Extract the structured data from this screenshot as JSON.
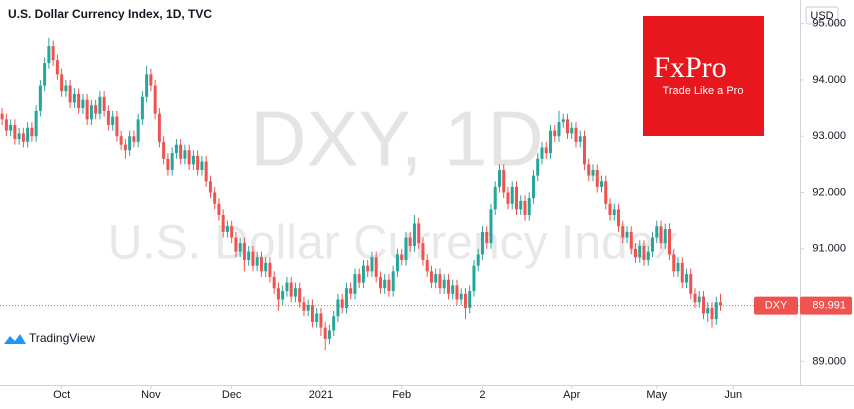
{
  "chart_data": {
    "type": "candlestick",
    "title": "U.S. Dollar Currency Index, 1D, TVC",
    "watermark_symbol": "DXY, 1D",
    "watermark_name": "U.S. Dollar Currency Index",
    "currency": "USD",
    "last_label": "DXY",
    "logo": {
      "brand": "FxPro",
      "tagline": "Trade Like a Pro"
    },
    "source": "TradingView",
    "up_color": "#26a69a",
    "down_color": "#ef5350",
    "xlim": [
      -0.5,
      187.7
    ],
    "xticks": [
      {
        "value": 14,
        "label": "Oct"
      },
      {
        "value": 35,
        "label": "Nov"
      },
      {
        "value": 54,
        "label": "Dec"
      },
      {
        "value": 75,
        "label": "2021"
      },
      {
        "value": 94,
        "label": "Feb"
      },
      {
        "value": 113,
        "label": "2"
      },
      {
        "value": 134,
        "label": "Apr"
      },
      {
        "value": 154,
        "label": "May"
      },
      {
        "value": 172,
        "label": "Jun"
      }
    ],
    "ylim": [
      88.58,
      95.42
    ],
    "yticks": [
      {
        "value": 89,
        "label": "89.000"
      },
      {
        "value": 91,
        "label": "91.000"
      },
      {
        "value": 92,
        "label": "92.000"
      },
      {
        "value": 93,
        "label": "93.000"
      },
      {
        "value": 94,
        "label": "94.000"
      },
      {
        "value": 95,
        "label": "95.000"
      }
    ],
    "candles": [
      [
        93.4,
        93.5,
        93.2,
        93.3
      ],
      [
        93.3,
        93.4,
        93.0,
        93.1
      ],
      [
        93.1,
        93.3,
        93.0,
        93.2
      ],
      [
        93.2,
        93.3,
        92.85,
        92.95
      ],
      [
        92.95,
        93.15,
        92.85,
        93.05
      ],
      [
        93.05,
        93.15,
        92.8,
        92.9
      ],
      [
        92.9,
        93.25,
        92.8,
        93.15
      ],
      [
        93.15,
        93.25,
        92.9,
        93.0
      ],
      [
        93.0,
        93.55,
        92.9,
        93.45
      ],
      [
        93.45,
        94.0,
        93.35,
        93.9
      ],
      [
        93.9,
        94.4,
        93.8,
        94.3
      ],
      [
        94.3,
        94.75,
        94.2,
        94.6
      ],
      [
        94.6,
        94.7,
        94.25,
        94.35
      ],
      [
        94.35,
        94.45,
        94.0,
        94.1
      ],
      [
        94.1,
        94.2,
        93.7,
        93.8
      ],
      [
        93.8,
        94.0,
        93.7,
        93.9
      ],
      [
        93.9,
        94.0,
        93.5,
        93.6
      ],
      [
        93.6,
        93.85,
        93.5,
        93.75
      ],
      [
        93.75,
        93.85,
        93.4,
        93.5
      ],
      [
        93.5,
        93.75,
        93.4,
        93.65
      ],
      [
        93.65,
        93.75,
        93.2,
        93.3
      ],
      [
        93.3,
        93.65,
        93.2,
        93.55
      ],
      [
        93.55,
        93.65,
        93.3,
        93.4
      ],
      [
        93.4,
        93.8,
        93.3,
        93.7
      ],
      [
        93.7,
        93.8,
        93.35,
        93.45
      ],
      [
        93.45,
        93.55,
        93.1,
        93.2
      ],
      [
        93.2,
        93.45,
        93.1,
        93.35
      ],
      [
        93.35,
        93.45,
        92.9,
        93.0
      ],
      [
        93.0,
        93.1,
        92.75,
        92.85
      ],
      [
        92.85,
        92.95,
        92.6,
        92.75
      ],
      [
        92.75,
        93.1,
        92.65,
        93.0
      ],
      [
        93.0,
        93.1,
        92.8,
        92.9
      ],
      [
        92.9,
        93.4,
        92.8,
        93.3
      ],
      [
        93.3,
        93.8,
        93.2,
        93.7
      ],
      [
        93.7,
        94.25,
        93.6,
        94.1
      ],
      [
        94.1,
        94.2,
        93.8,
        93.9
      ],
      [
        93.9,
        94.0,
        93.3,
        93.4
      ],
      [
        93.4,
        93.5,
        92.8,
        92.9
      ],
      [
        92.9,
        93.0,
        92.5,
        92.6
      ],
      [
        92.6,
        92.7,
        92.3,
        92.4
      ],
      [
        92.4,
        92.8,
        92.3,
        92.7
      ],
      [
        92.7,
        92.95,
        92.6,
        92.85
      ],
      [
        92.85,
        92.95,
        92.5,
        92.6
      ],
      [
        92.6,
        92.85,
        92.5,
        92.75
      ],
      [
        92.75,
        92.85,
        92.4,
        92.5
      ],
      [
        92.5,
        92.75,
        92.4,
        92.65
      ],
      [
        92.65,
        92.75,
        92.3,
        92.4
      ],
      [
        92.4,
        92.65,
        92.3,
        92.55
      ],
      [
        92.55,
        92.65,
        92.1,
        92.2
      ],
      [
        92.2,
        92.3,
        91.9,
        92.0
      ],
      [
        92.0,
        92.1,
        91.7,
        91.8
      ],
      [
        91.8,
        91.9,
        91.5,
        91.6
      ],
      [
        91.6,
        91.7,
        91.2,
        91.3
      ],
      [
        91.3,
        91.5,
        91.2,
        91.4
      ],
      [
        91.4,
        91.5,
        91.1,
        91.2
      ],
      [
        91.2,
        91.3,
        90.85,
        90.95
      ],
      [
        90.95,
        91.2,
        90.85,
        91.1
      ],
      [
        91.1,
        91.2,
        90.6,
        90.8
      ],
      [
        90.8,
        91.05,
        90.7,
        90.95
      ],
      [
        90.95,
        91.05,
        90.6,
        90.7
      ],
      [
        90.7,
        90.95,
        90.6,
        90.85
      ],
      [
        90.85,
        90.95,
        90.5,
        90.6
      ],
      [
        90.6,
        90.85,
        90.5,
        90.75
      ],
      [
        90.75,
        90.85,
        90.4,
        90.5
      ],
      [
        90.5,
        90.6,
        90.2,
        90.3
      ],
      [
        90.3,
        90.4,
        89.9,
        90.1
      ],
      [
        90.1,
        90.35,
        90.0,
        90.25
      ],
      [
        90.25,
        90.5,
        90.15,
        90.4
      ],
      [
        90.4,
        90.5,
        90.05,
        90.15
      ],
      [
        90.15,
        90.4,
        90.05,
        90.3
      ],
      [
        90.3,
        90.4,
        89.95,
        90.05
      ],
      [
        90.05,
        90.15,
        89.8,
        89.9
      ],
      [
        89.9,
        90.1,
        89.8,
        90.0
      ],
      [
        90.0,
        90.1,
        89.6,
        89.7
      ],
      [
        89.7,
        89.95,
        89.6,
        89.85
      ],
      [
        89.85,
        89.95,
        89.45,
        89.6
      ],
      [
        89.6,
        89.7,
        89.2,
        89.4
      ],
      [
        89.4,
        89.65,
        89.3,
        89.55
      ],
      [
        89.55,
        89.9,
        89.45,
        89.8
      ],
      [
        89.8,
        90.2,
        89.7,
        90.1
      ],
      [
        90.1,
        90.2,
        89.85,
        89.95
      ],
      [
        89.95,
        90.4,
        89.85,
        90.3
      ],
      [
        90.3,
        90.4,
        90.1,
        90.2
      ],
      [
        90.2,
        90.65,
        90.1,
        90.55
      ],
      [
        90.55,
        90.65,
        90.3,
        90.4
      ],
      [
        90.4,
        90.8,
        90.3,
        90.7
      ],
      [
        90.7,
        90.8,
        90.5,
        90.6
      ],
      [
        90.6,
        90.95,
        90.5,
        90.85
      ],
      [
        90.85,
        90.95,
        90.4,
        90.5
      ],
      [
        90.5,
        90.6,
        90.2,
        90.3
      ],
      [
        90.3,
        90.55,
        90.2,
        90.45
      ],
      [
        90.45,
        90.55,
        90.15,
        90.25
      ],
      [
        90.25,
        90.7,
        90.15,
        90.6
      ],
      [
        90.6,
        91.0,
        90.5,
        90.9
      ],
      [
        90.9,
        91.0,
        90.7,
        90.8
      ],
      [
        90.8,
        91.3,
        90.7,
        91.2
      ],
      [
        91.2,
        91.3,
        90.95,
        91.05
      ],
      [
        91.05,
        91.6,
        90.95,
        91.45
      ],
      [
        91.45,
        91.55,
        91.0,
        91.1
      ],
      [
        91.1,
        91.2,
        90.7,
        90.8
      ],
      [
        90.8,
        90.9,
        90.5,
        90.6
      ],
      [
        90.6,
        90.7,
        90.3,
        90.4
      ],
      [
        90.4,
        90.65,
        90.3,
        90.55
      ],
      [
        90.55,
        90.65,
        90.2,
        90.3
      ],
      [
        90.3,
        90.55,
        90.2,
        90.45
      ],
      [
        90.45,
        90.55,
        90.1,
        90.2
      ],
      [
        90.2,
        90.45,
        90.1,
        90.35
      ],
      [
        90.35,
        90.45,
        90.0,
        90.1
      ],
      [
        90.1,
        90.3,
        90.0,
        90.2
      ],
      [
        90.2,
        90.3,
        89.75,
        89.95
      ],
      [
        89.95,
        90.35,
        89.85,
        90.25
      ],
      [
        90.25,
        90.8,
        90.15,
        90.7
      ],
      [
        90.7,
        91.0,
        90.6,
        90.9
      ],
      [
        90.9,
        91.4,
        90.8,
        91.3
      ],
      [
        91.3,
        91.4,
        91.0,
        91.1
      ],
      [
        91.1,
        91.8,
        91.0,
        91.7
      ],
      [
        91.7,
        92.2,
        91.6,
        92.1
      ],
      [
        92.1,
        92.5,
        92.0,
        92.4
      ],
      [
        92.4,
        92.5,
        91.9,
        92.0
      ],
      [
        92.0,
        92.1,
        91.7,
        91.8
      ],
      [
        91.8,
        92.2,
        91.7,
        92.1
      ],
      [
        92.1,
        92.2,
        91.6,
        91.7
      ],
      [
        91.7,
        91.95,
        91.6,
        91.85
      ],
      [
        91.85,
        91.95,
        91.5,
        91.6
      ],
      [
        91.6,
        92.0,
        91.5,
        91.9
      ],
      [
        91.9,
        92.4,
        91.8,
        92.3
      ],
      [
        92.3,
        92.7,
        92.2,
        92.6
      ],
      [
        92.6,
        92.9,
        92.5,
        92.8
      ],
      [
        92.8,
        92.9,
        92.6,
        92.7
      ],
      [
        92.7,
        93.2,
        92.6,
        93.1
      ],
      [
        93.1,
        93.2,
        92.9,
        93.0
      ],
      [
        93.0,
        93.45,
        92.9,
        93.25
      ],
      [
        93.25,
        93.4,
        93.15,
        93.3
      ],
      [
        93.3,
        93.4,
        92.95,
        93.05
      ],
      [
        93.05,
        93.25,
        92.95,
        93.15
      ],
      [
        93.15,
        93.25,
        92.8,
        92.9
      ],
      [
        92.9,
        93.1,
        92.8,
        93.0
      ],
      [
        93.0,
        93.1,
        92.4,
        92.5
      ],
      [
        92.5,
        92.6,
        92.2,
        92.3
      ],
      [
        92.3,
        92.5,
        92.2,
        92.4
      ],
      [
        92.4,
        92.5,
        92.0,
        92.1
      ],
      [
        92.1,
        92.3,
        92.0,
        92.2
      ],
      [
        92.2,
        92.3,
        91.7,
        91.8
      ],
      [
        91.8,
        91.9,
        91.5,
        91.6
      ],
      [
        91.6,
        91.8,
        91.5,
        91.7
      ],
      [
        91.7,
        91.8,
        91.3,
        91.4
      ],
      [
        91.4,
        91.5,
        91.1,
        91.2
      ],
      [
        91.2,
        91.4,
        91.1,
        91.3
      ],
      [
        91.3,
        91.4,
        90.9,
        91.0
      ],
      [
        91.0,
        91.1,
        90.75,
        90.85
      ],
      [
        90.85,
        91.15,
        90.75,
        91.05
      ],
      [
        91.05,
        91.15,
        90.7,
        90.8
      ],
      [
        90.8,
        91.05,
        90.7,
        90.95
      ],
      [
        90.95,
        91.3,
        90.85,
        91.2
      ],
      [
        91.2,
        91.5,
        91.1,
        91.4
      ],
      [
        91.4,
        91.5,
        91.0,
        91.1
      ],
      [
        91.1,
        91.45,
        91.0,
        91.35
      ],
      [
        91.35,
        91.45,
        90.8,
        90.9
      ],
      [
        90.9,
        91.0,
        90.5,
        90.6
      ],
      [
        90.6,
        90.85,
        90.5,
        90.75
      ],
      [
        90.75,
        90.85,
        90.3,
        90.4
      ],
      [
        90.4,
        90.65,
        90.3,
        90.55
      ],
      [
        90.55,
        90.65,
        90.1,
        90.2
      ],
      [
        90.2,
        90.3,
        89.95,
        90.05
      ],
      [
        90.05,
        90.25,
        89.95,
        90.15
      ],
      [
        90.15,
        90.25,
        89.75,
        89.85
      ],
      [
        89.85,
        90.05,
        89.7,
        89.95
      ],
      [
        89.95,
        90.05,
        89.6,
        89.75
      ],
      [
        89.75,
        90.15,
        89.65,
        90.05
      ],
      [
        90.05,
        90.2,
        89.9,
        89.991
      ]
    ]
  }
}
